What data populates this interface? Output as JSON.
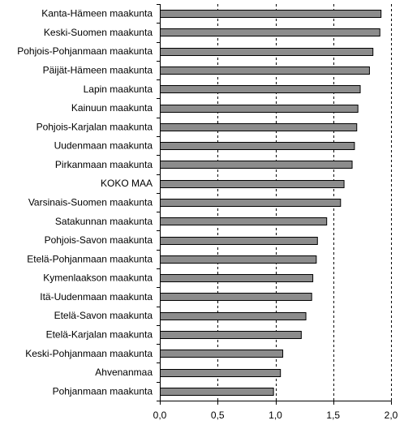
{
  "chart_data": {
    "type": "bar",
    "orientation": "horizontal",
    "categories": [
      "Kanta-Hämeen maakunta",
      "Keski-Suomen maakunta",
      "Pohjois-Pohjanmaan maakunta",
      "Päijät-Hämeen maakunta",
      "Lapin maakunta",
      "Kainuun maakunta",
      "Pohjois-Karjalan maakunta",
      "Uudenmaan maakunta",
      "Pirkanmaan maakunta",
      "KOKO MAA",
      "Varsinais-Suomen maakunta",
      "Satakunnan maakunta",
      "Pohjois-Savon maakunta",
      "Etelä-Pohjanmaan maakunta",
      "Kymenlaakson maakunta",
      "Itä-Uudenmaan maakunta",
      "Etelä-Savon maakunta",
      "Etelä-Karjalan maakunta",
      "Keski-Pohjanmaan maakunta",
      "Ahvenanmaa",
      "Pohjanmaan maakunta"
    ],
    "values": [
      1.91,
      1.9,
      1.84,
      1.81,
      1.73,
      1.71,
      1.7,
      1.68,
      1.66,
      1.59,
      1.56,
      1.44,
      1.36,
      1.35,
      1.32,
      1.31,
      1.26,
      1.22,
      1.06,
      1.04,
      0.98
    ],
    "xlim": [
      0.0,
      2.0
    ],
    "xticks": [
      0.0,
      0.5,
      1.0,
      1.5,
      2.0
    ],
    "xtick_labels": [
      "0,0",
      "0,5",
      "1,0",
      "1,5",
      "2,0"
    ],
    "title": "",
    "xlabel": "",
    "ylabel": "",
    "grid": "vertical-dashed",
    "colors": {
      "bar_fill": "#8c8c8c",
      "bar_stroke": "#000000",
      "grid": "#000000",
      "axis": "#000000"
    }
  }
}
